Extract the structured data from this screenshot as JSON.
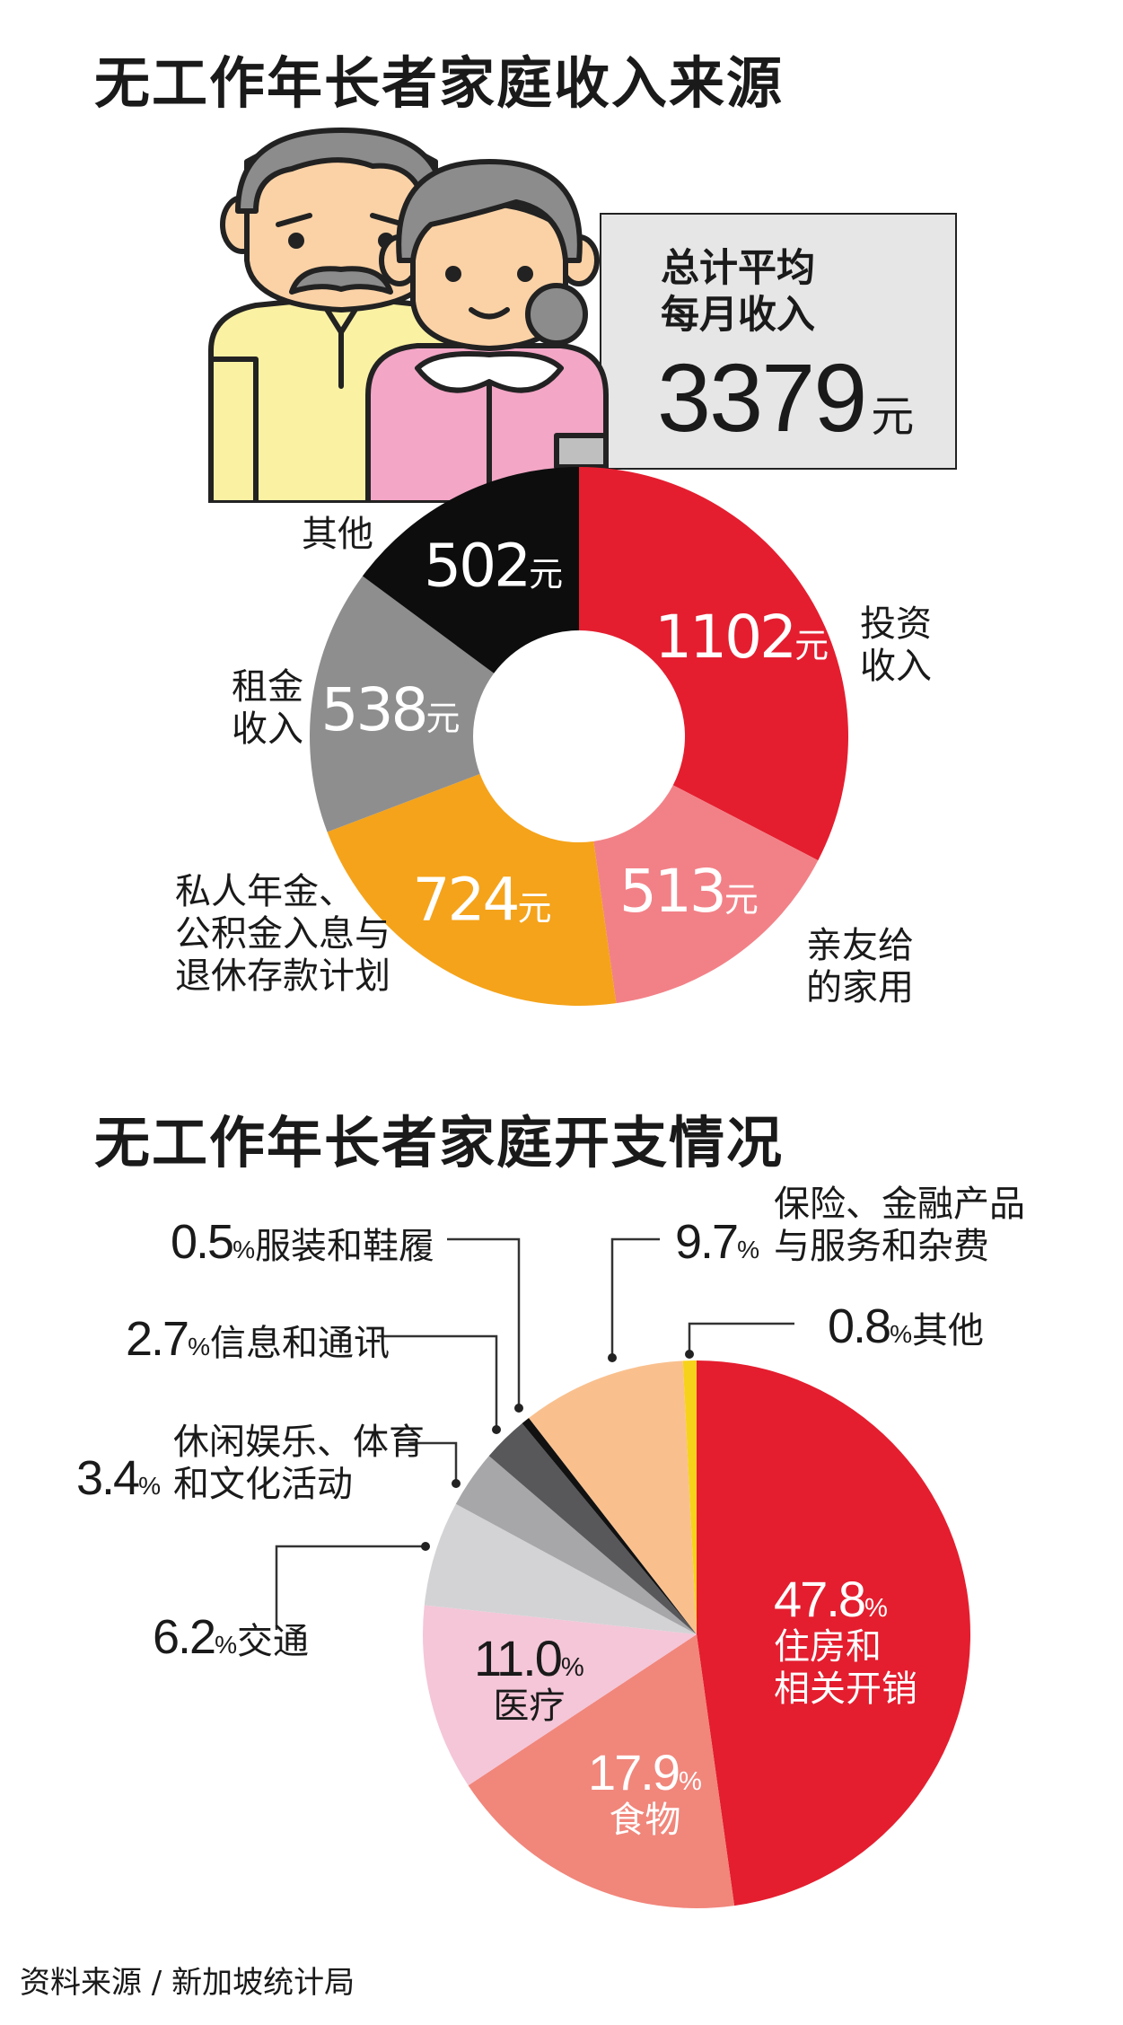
{
  "income": {
    "title": "无工作年长者家庭收入来源",
    "summary_line1": "总计平均",
    "summary_line2": "每月收入",
    "total_value": "3379",
    "total_unit": "元"
  },
  "expense": {
    "title": "无工作年长者家庭开支情况"
  },
  "source": "资料来源 / 新加坡统计局",
  "chart_data": [
    {
      "type": "pie",
      "variant": "donut",
      "title": "无工作年长者家庭收入来源",
      "unit": "元",
      "categories": [
        "投资收入",
        "亲友给的家用",
        "私人年金、公积金入息与退休存款计划",
        "租金收入",
        "其他"
      ],
      "values": [
        1102,
        513,
        724,
        538,
        502
      ],
      "colors": [
        "#e41e2f",
        "#f28187",
        "#f5a31a",
        "#8e8e8e",
        "#0d0d0d"
      ],
      "labels": [
        {
          "value": "1102",
          "unit": "元",
          "name_lines": [
            "投资",
            "收入"
          ]
        },
        {
          "value": "513",
          "unit": "元",
          "name_lines": [
            "亲友给",
            "的家用"
          ]
        },
        {
          "value": "724",
          "unit": "元",
          "name_lines": [
            "私人年金、",
            "公积金入息与",
            "退休存款计划"
          ]
        },
        {
          "value": "538",
          "unit": "元",
          "name_lines": [
            "租金",
            "收入"
          ]
        },
        {
          "value": "502",
          "unit": "元",
          "name_lines": [
            "其他"
          ]
        }
      ]
    },
    {
      "type": "pie",
      "title": "无工作年长者家庭开支情况",
      "unit": "%",
      "categories": [
        "住房和相关开销",
        "食物",
        "医疗",
        "交通",
        "休闲娱乐、体育和文化活动",
        "信息和通讯",
        "服装和鞋履",
        "保险、金融产品与服务和杂费",
        "其他"
      ],
      "values": [
        47.8,
        17.9,
        11.0,
        6.2,
        3.4,
        2.7,
        0.5,
        9.7,
        0.8
      ],
      "colors": [
        "#e41e2f",
        "#f1867b",
        "#f4c6d8",
        "#d3d3d5",
        "#a7a7aa",
        "#58585b",
        "#111111",
        "#f9c08e",
        "#f7d21a"
      ],
      "labels": [
        {
          "value": "47.8",
          "pct": "%",
          "name_lines": [
            "住房和",
            "相关开销"
          ]
        },
        {
          "value": "17.9",
          "pct": "%",
          "name_lines": [
            "食物"
          ]
        },
        {
          "value": "11.0",
          "pct": "%",
          "name_lines": [
            "医疗"
          ]
        },
        {
          "value": "6.2",
          "pct": "%",
          "name_lines": [
            "交通"
          ]
        },
        {
          "value": "3.4",
          "pct": "%",
          "name_lines": [
            "休闲娱乐、体育",
            "和文化活动"
          ]
        },
        {
          "value": "2.7",
          "pct": "%",
          "name_lines": [
            "信息和通讯"
          ]
        },
        {
          "value": "0.5",
          "pct": "%",
          "name_lines": [
            "服装和鞋履"
          ]
        },
        {
          "value": "9.7",
          "pct": "%",
          "name_lines": [
            "保险、金融产品",
            "与服务和杂费"
          ]
        },
        {
          "value": "0.8",
          "pct": "%",
          "name_lines": [
            "其他"
          ]
        }
      ]
    }
  ]
}
